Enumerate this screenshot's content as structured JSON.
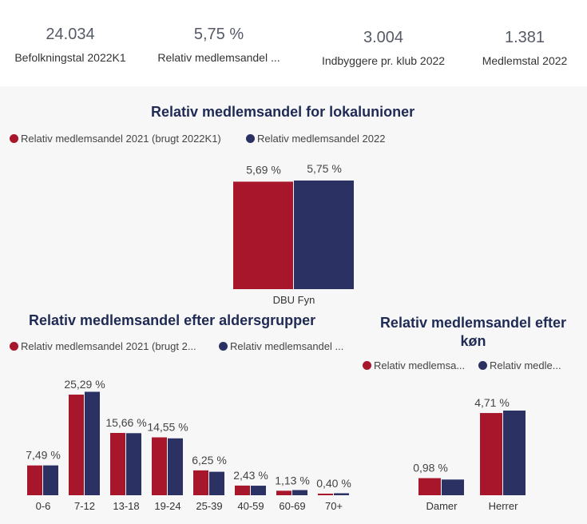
{
  "colors": {
    "series2021": "#a8162b",
    "series2022": "#2b3263",
    "title": "#1f2a55"
  },
  "kpis": [
    {
      "value": "24.034",
      "label": "Befolkningstal 2022K1"
    },
    {
      "value": "5,75 %",
      "label": "Relativ medlemsandel ..."
    },
    {
      "value": "3.004",
      "label": "Indbyggere pr. klub 2022"
    },
    {
      "value": "1.381",
      "label": "Medlemstal 2022"
    }
  ],
  "chart_data": [
    {
      "type": "bar",
      "title": "Relativ medlemsandel for lokalunioner",
      "legend": [
        "Relativ medlemsandel 2021 (brugt 2022K1)",
        "Relativ medlemsandel 2022"
      ],
      "categories": [
        "DBU Fyn"
      ],
      "series": [
        {
          "name": "Relativ medlemsandel 2021 (brugt 2022K1)",
          "values": [
            5.69
          ],
          "labels": [
            "5,69 %"
          ]
        },
        {
          "name": "Relativ medlemsandel 2022",
          "values": [
            5.75
          ],
          "labels": [
            "5,75 %"
          ]
        }
      ],
      "ylim": [
        0,
        5.75
      ]
    },
    {
      "type": "bar",
      "title": "Relativ medlemsandel efter aldersgrupper",
      "legend": [
        "Relativ medlemsandel 2021 (brugt 2...",
        "Relativ medlemsandel ..."
      ],
      "categories": [
        "0-6",
        "7-12",
        "13-18",
        "19-24",
        "25-39",
        "40-59",
        "60-69",
        "70+"
      ],
      "series": [
        {
          "name": "Relativ medlemsandel 2021 (brugt 2...",
          "values": [
            7.49,
            25.29,
            15.66,
            14.55,
            6.25,
            2.43,
            1.13,
            0.4
          ],
          "labels": [
            "7,49 %",
            "25,29 %",
            "15,66 %",
            "14,55 %",
            "6,25 %",
            "2,43 %",
            "1,13 %",
            "0,40 %"
          ]
        },
        {
          "name": "Relativ medlemsandel ...",
          "values": [
            7.5,
            26.0,
            15.6,
            14.3,
            5.9,
            2.4,
            1.3,
            0.5
          ]
        }
      ],
      "ylim": [
        0,
        26.5
      ]
    },
    {
      "type": "bar",
      "title": "Relativ medlemsandel efter køn",
      "title_lines": [
        "Relativ medlemsandel efter",
        "køn"
      ],
      "legend": [
        "Relativ medlemsa...",
        "Relativ medle..."
      ],
      "categories": [
        "Damer",
        "Herrer"
      ],
      "series": [
        {
          "name": "Relativ medlemsa...",
          "values": [
            0.98,
            4.71
          ],
          "labels": [
            "0,98 %",
            "4,71 %"
          ]
        },
        {
          "name": "Relativ medle...",
          "values": [
            0.9,
            4.85
          ]
        }
      ],
      "ylim": [
        0,
        4.85
      ]
    }
  ]
}
